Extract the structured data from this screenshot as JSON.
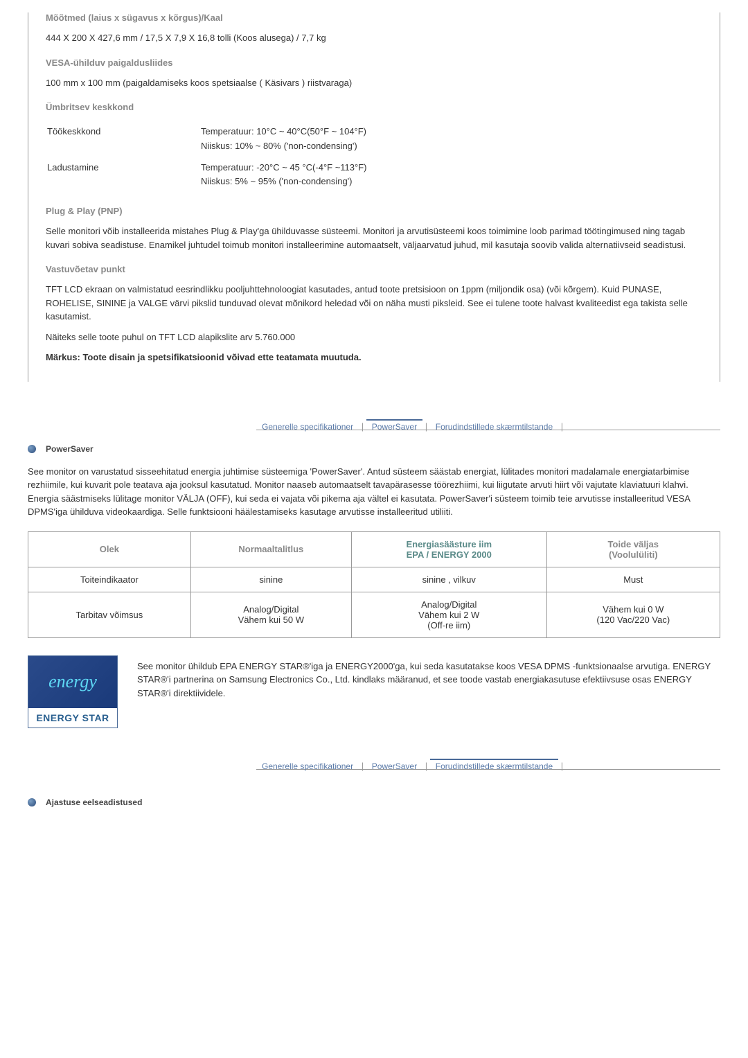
{
  "spec": {
    "dimensions_title": "Mõõtmed (laius x sügavus x kõrgus)/Kaal",
    "dimensions_value": "444 X 200 X 427,6 mm / 17,5 X 7,9 X 16,8 tolli (Koos alusega) / 7,7 kg",
    "vesa_title": "VESA-ühilduv paigaldusliides",
    "vesa_value": "100 mm x 100 mm (paigaldamiseks koos spetsiaalse (   Käsivars   ) riistvaraga)",
    "env_title": "Ümbritsev keskkond",
    "env_work_label": "Töökeskkond",
    "env_work_temp": "Temperatuur: 10°C ~ 40°C(50°F ~ 104°F)",
    "env_work_humidity": "Niiskus: 10% ~ 80% ('non-condensing')",
    "env_storage_label": "Ladustamine",
    "env_storage_temp": "Temperatuur: -20°C ~ 45 °C(-4°F ~113°F)",
    "env_storage_humidity": "Niiskus: 5% ~ 95% ('non-condensing')",
    "pnp_title": "Plug & Play (PNP)",
    "pnp_text": "Selle monitori võib installeerida mistahes Plug & Play'ga ühilduvasse süsteemi. Monitori ja arvutisüsteemi koos toimimine loob parimad töötingimused ning tagab kuvari sobiva seadistuse. Enamikel juhtudel toimub monitori installeerimine automaatselt, väljaarvatud juhud, mil kasutaja soovib valida alternatiivseid seadistusi.",
    "point_title": "Vastuvõetav punkt",
    "point_text1": "TFT LCD ekraan on valmistatud eesrindlikku pooljuhttehnoloogiat kasutades, antud toote pretsisioon on 1ppm (miljondik osa) (või kõrgem). Kuid PUNASE, ROHELISE, SININE ja VALGE värvi pikslid tunduvad olevat mõnikord heledad või on näha musti piksleid. See ei tulene toote halvast kvaliteedist ega takista selle kasutamist.",
    "point_text2": "Näiteks selle toote puhul on TFT LCD alapikslite arv 5.760.000",
    "note": "Märkus: Toote disain ja spetsifikatsioonid võivad ette teatamata muutuda."
  },
  "tabs": {
    "tab1": "Generelle specifikationer",
    "tab2": "PowerSaver",
    "tab3": "Forudindstillede skærmtilstande"
  },
  "powersaver": {
    "header": "PowerSaver",
    "paragraph": "See monitor on varustatud sisseehitatud energia juhtimise süsteemiga 'PowerSaver'. Antud süsteem säästab energiat, lülitades monitori madalamale energiatarbimise rezhiimile, kui kuvarit pole teatava aja jooksul kasutatud. Monitor naaseb automaatselt tavapärasesse töörezhiimi, kui liigutate arvuti hiirt või vajutate klaviatuuri klahvi. Energia säästmiseks lülitage monitor VÄLJA (OFF), kui seda ei vajata või pikema aja vältel ei kasutata. PowerSaver'i süsteem toimib teie arvutisse installeeritud VESA DPMS'iga ühilduva videokaardiga. Selle funktsiooni häälestamiseks kasutage arvutisse installeeritud utiliiti."
  },
  "table": {
    "h1": "Olek",
    "h2": "Normaaltalitlus",
    "h3a": "Energiasäästure    iim",
    "h3b": "EPA / ENERGY 2000",
    "h4a": "Toide väljas",
    "h4b": "(Voolulüliti)",
    "r1c1": "Toiteindikaator",
    "r1c2": "sinine",
    "r1c3": "sinine , vilkuv",
    "r1c4": "Must",
    "r2c1": "Tarbitav võimsus",
    "r2c2a": "Analog/Digital",
    "r2c2b": "Vähem kui 50 W",
    "r2c3a": "Analog/Digital",
    "r2c3b": "Vähem kui 2 W",
    "r2c3c": "(Off-re    iim)",
    "r2c4a": "Vähem kui 0 W",
    "r2c4b": "(120 Vac/220 Vac)"
  },
  "energy": {
    "logo_script": "energy",
    "logo_text": "ENERGY STAR",
    "text": "See monitor ühildub EPA ENERGY STAR®'iga ja ENERGY2000'ga, kui seda kasutatakse koos VESA DPMS -funktsionaalse arvutiga. ENERGY STAR®'i partnerina on Samsung Electronics Co., Ltd. kindlaks määranud, et see toode vastab energiakasutuse efektiivsuse osas ENERGY STAR®'i direktiividele."
  },
  "bottom_header": "Ajastuse eelseadistused"
}
